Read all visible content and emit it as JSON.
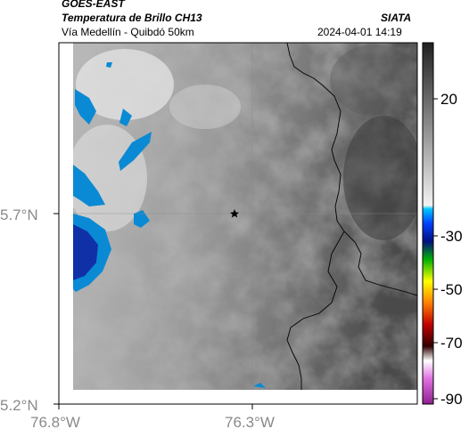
{
  "header": {
    "title": "GOES-EAST",
    "subtitle": "Temperatura de Brillo CH13",
    "route": "Vía Medellín - Quibdó 50km",
    "agency": "SIATA",
    "datetime": "2024-04-01 14:19"
  },
  "axes": {
    "lat_labels": [
      "5.7°N",
      "5.2°N"
    ],
    "lon_labels": [
      "76.8°W",
      "76.3°W"
    ]
  },
  "colorbar": {
    "labels": [
      "20",
      "-30",
      "-50",
      "-70",
      "-90"
    ]
  },
  "colors": {
    "cloud_cold": "#0a8ad4",
    "cloud_very_cold": "#1030a8",
    "border": "#000000"
  },
  "icons": {
    "marker": "star-icon"
  }
}
